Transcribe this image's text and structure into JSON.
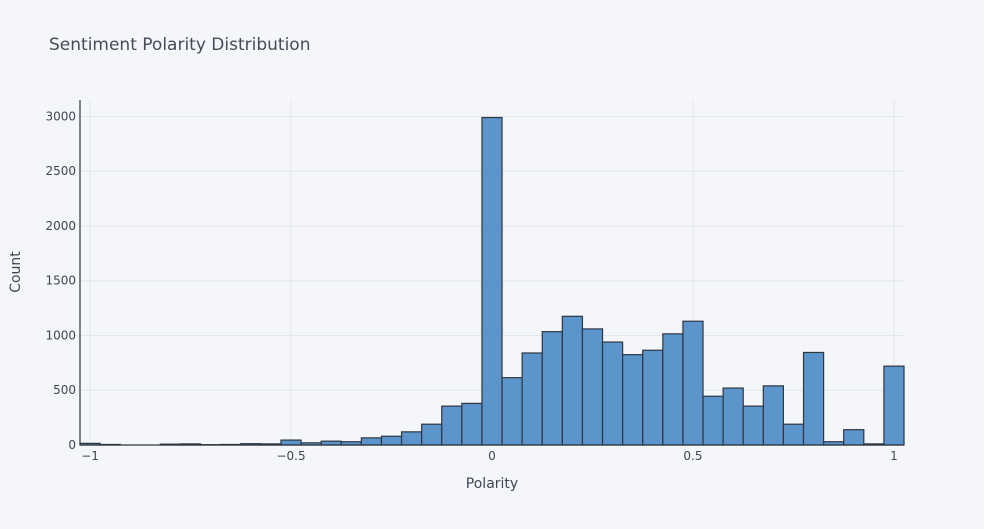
{
  "chart_data": {
    "type": "bar",
    "title": "Sentiment Polarity Distribution",
    "xlabel": "Polarity",
    "ylabel": "Count",
    "xlim": [
      -1.025,
      1.025
    ],
    "ylim": [
      0,
      3150
    ],
    "xticks": [
      -1,
      -0.5,
      0,
      0.5,
      1
    ],
    "xtick_labels": [
      "−1",
      "−0.5",
      "0",
      "0.5",
      "1"
    ],
    "yticks": [
      0,
      500,
      1000,
      1500,
      2000,
      2500,
      3000
    ],
    "ytick_labels": [
      "0",
      "500",
      "1000",
      "1500",
      "2000",
      "2500",
      "3000"
    ],
    "grid": true,
    "bin_width": 0.05,
    "bins": [
      {
        "x0": -1.025,
        "value": 15
      },
      {
        "x0": -0.975,
        "value": 5
      },
      {
        "x0": -0.925,
        "value": 0
      },
      {
        "x0": -0.875,
        "value": 0
      },
      {
        "x0": -0.825,
        "value": 8
      },
      {
        "x0": -0.775,
        "value": 10
      },
      {
        "x0": -0.725,
        "value": 3
      },
      {
        "x0": -0.675,
        "value": 5
      },
      {
        "x0": -0.625,
        "value": 12
      },
      {
        "x0": -0.575,
        "value": 10
      },
      {
        "x0": -0.525,
        "value": 45
      },
      {
        "x0": -0.475,
        "value": 20
      },
      {
        "x0": -0.425,
        "value": 35
      },
      {
        "x0": -0.375,
        "value": 30
      },
      {
        "x0": -0.325,
        "value": 65
      },
      {
        "x0": -0.275,
        "value": 80
      },
      {
        "x0": -0.225,
        "value": 120
      },
      {
        "x0": -0.175,
        "value": 190
      },
      {
        "x0": -0.125,
        "value": 355
      },
      {
        "x0": -0.075,
        "value": 380
      },
      {
        "x0": -0.025,
        "value": 2990
      },
      {
        "x0": 0.025,
        "value": 615
      },
      {
        "x0": 0.075,
        "value": 840
      },
      {
        "x0": 0.125,
        "value": 1035
      },
      {
        "x0": 0.175,
        "value": 1175
      },
      {
        "x0": 0.225,
        "value": 1060
      },
      {
        "x0": 0.275,
        "value": 940
      },
      {
        "x0": 0.325,
        "value": 825
      },
      {
        "x0": 0.375,
        "value": 865
      },
      {
        "x0": 0.425,
        "value": 1015
      },
      {
        "x0": 0.475,
        "value": 1130
      },
      {
        "x0": 0.525,
        "value": 445
      },
      {
        "x0": 0.575,
        "value": 520
      },
      {
        "x0": 0.625,
        "value": 355
      },
      {
        "x0": 0.675,
        "value": 540
      },
      {
        "x0": 0.725,
        "value": 190
      },
      {
        "x0": 0.775,
        "value": 845
      },
      {
        "x0": 0.825,
        "value": 30
      },
      {
        "x0": 0.875,
        "value": 140
      },
      {
        "x0": 0.925,
        "value": 10
      },
      {
        "x0": 0.975,
        "value": 720
      }
    ],
    "colors": {
      "bar_fill": "#5b95cc",
      "bar_edge": "#2e3640",
      "background": "#f5f6fa",
      "grid": "#e3e6ee"
    }
  }
}
